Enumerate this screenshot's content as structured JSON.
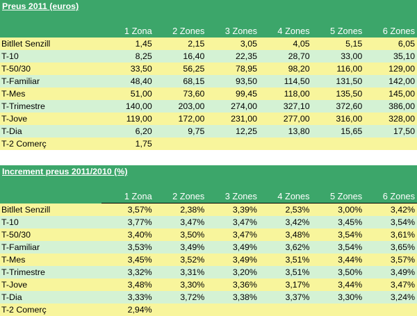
{
  "table1": {
    "title": "Preus 2011 (euros)",
    "columns": [
      "1 Zona",
      "2 Zones",
      "3 Zones",
      "4 Zones",
      "5 Zones",
      "6 Zones"
    ],
    "rows": [
      {
        "label": "Bitllet Senzill",
        "values": [
          "1,45",
          "2,15",
          "3,05",
          "4,05",
          "5,15",
          "6,05"
        ]
      },
      {
        "label": "T-10",
        "values": [
          "8,25",
          "16,40",
          "22,35",
          "28,70",
          "33,00",
          "35,10"
        ]
      },
      {
        "label": "T-50/30",
        "values": [
          "33,50",
          "56,25",
          "78,95",
          "98,20",
          "116,00",
          "129,00"
        ]
      },
      {
        "label": "T-Familiar",
        "values": [
          "48,40",
          "68,15",
          "93,50",
          "114,50",
          "131,50",
          "142,00"
        ]
      },
      {
        "label": "T-Mes",
        "values": [
          "51,00",
          "73,60",
          "99,45",
          "118,00",
          "135,50",
          "145,00"
        ]
      },
      {
        "label": "T-Trimestre",
        "values": [
          "140,00",
          "203,00",
          "274,00",
          "327,10",
          "372,60",
          "386,00"
        ]
      },
      {
        "label": "T-Jove",
        "values": [
          "119,00",
          "172,00",
          "231,00",
          "277,00",
          "316,00",
          "328,00"
        ]
      },
      {
        "label": "T-Dia",
        "values": [
          "6,20",
          "9,75",
          "12,25",
          "13,80",
          "15,65",
          "17,50"
        ]
      },
      {
        "label": "T-2 Comerç",
        "values": [
          "1,75",
          "",
          "",
          "",
          "",
          ""
        ]
      }
    ]
  },
  "table2": {
    "title": "Increment preus 2011/2010  (%)",
    "columns": [
      "1 Zona",
      "2 Zones",
      "3 Zones",
      "4 Zones",
      "5 Zones",
      "6 Zones"
    ],
    "rows": [
      {
        "label": "Bitllet Senzill",
        "values": [
          "3,57%",
          "2,38%",
          "3,39%",
          "2,53%",
          "3,00%",
          "3,42%"
        ]
      },
      {
        "label": "T-10",
        "values": [
          "3,77%",
          "3,47%",
          "3,47%",
          "3,42%",
          "3,45%",
          "3,54%"
        ]
      },
      {
        "label": "T-50/30",
        "values": [
          "3,40%",
          "3,50%",
          "3,47%",
          "3,48%",
          "3,54%",
          "3,61%"
        ]
      },
      {
        "label": "T-Familiar",
        "values": [
          "3,53%",
          "3,49%",
          "3,49%",
          "3,62%",
          "3,54%",
          "3,65%"
        ]
      },
      {
        "label": "T-Mes",
        "values": [
          "3,45%",
          "3,52%",
          "3,49%",
          "3,51%",
          "3,44%",
          "3,57%"
        ]
      },
      {
        "label": "T-Trimestre",
        "values": [
          "3,32%",
          "3,31%",
          "3,20%",
          "3,51%",
          "3,50%",
          "3,49%"
        ]
      },
      {
        "label": "T-Jove",
        "values": [
          "3,48%",
          "3,30%",
          "3,36%",
          "3,17%",
          "3,44%",
          "3,47%"
        ]
      },
      {
        "label": "T-Dia",
        "values": [
          "3,33%",
          "3,72%",
          "3,38%",
          "3,37%",
          "3,30%",
          "3,24%"
        ]
      },
      {
        "label": "T-2 Comerç",
        "values": [
          "2,94%",
          "",
          "",
          "",
          "",
          ""
        ]
      }
    ]
  },
  "colors": {
    "header_green": "#3ca66a",
    "row_yellow": "#f8f59c",
    "row_mint": "#d4f2d4"
  }
}
